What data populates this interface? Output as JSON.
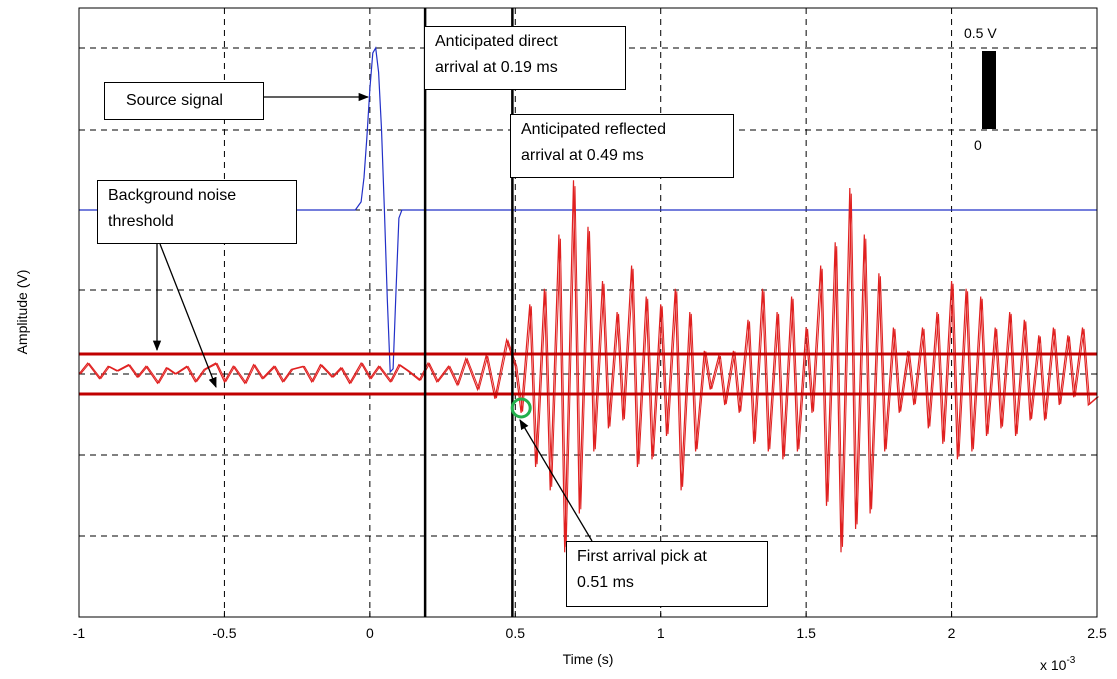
{
  "chart_data": {
    "type": "line",
    "xlabel": "Time (s)",
    "ylabel": "Amplitude (V)",
    "x_multiplier": "x 10",
    "x_multiplier_exp": "-3",
    "xlim": [
      -1,
      2.5
    ],
    "xticks": [
      "-1",
      "-0.5",
      "0",
      "0.5",
      "1",
      "1.5",
      "2",
      "2.5"
    ],
    "grid": true,
    "scale_bar": {
      "top_label": "0.5 V",
      "bottom_label": "0",
      "value_V": 0.5
    },
    "series": [
      {
        "color": "#2230c8",
        "role": "source",
        "x": [
          -1.0,
          -0.05,
          -0.03,
          -0.02,
          -0.01,
          0.0,
          0.01,
          0.02,
          0.03,
          0.04,
          0.05,
          0.06,
          0.07,
          0.08,
          0.09,
          0.1,
          0.11,
          2.5
        ],
        "y": [
          0,
          0,
          0.05,
          0.2,
          0.45,
          0.75,
          0.97,
          1.0,
          0.85,
          0.5,
          0.0,
          -0.55,
          -1.0,
          -0.98,
          -0.5,
          -0.05,
          0,
          0
        ]
      },
      {
        "color": "#e02020",
        "role": "received",
        "x": [
          -1.0,
          -0.97,
          -0.93,
          -0.9,
          -0.87,
          -0.83,
          -0.8,
          -0.77,
          -0.73,
          -0.7,
          -0.67,
          -0.63,
          -0.6,
          -0.57,
          -0.53,
          -0.5,
          -0.47,
          -0.43,
          -0.4,
          -0.37,
          -0.33,
          -0.3,
          -0.27,
          -0.23,
          -0.2,
          -0.17,
          -0.13,
          -0.1,
          -0.07,
          -0.03,
          0.0,
          0.03,
          0.07,
          0.1,
          0.13,
          0.17,
          0.2,
          0.23,
          0.27,
          0.3,
          0.33,
          0.37,
          0.4,
          0.43,
          0.47,
          0.5,
          0.52,
          0.55,
          0.57,
          0.6,
          0.62,
          0.65,
          0.67,
          0.7,
          0.72,
          0.75,
          0.77,
          0.8,
          0.82,
          0.85,
          0.87,
          0.9,
          0.92,
          0.95,
          0.97,
          1.0,
          1.02,
          1.05,
          1.07,
          1.1,
          1.12,
          1.15,
          1.17,
          1.2,
          1.22,
          1.25,
          1.27,
          1.3,
          1.32,
          1.35,
          1.37,
          1.4,
          1.42,
          1.45,
          1.47,
          1.5,
          1.52,
          1.55,
          1.57,
          1.6,
          1.62,
          1.65,
          1.67,
          1.7,
          1.72,
          1.75,
          1.77,
          1.8,
          1.82,
          1.85,
          1.87,
          1.9,
          1.92,
          1.95,
          1.97,
          2.0,
          2.02,
          2.05,
          2.07,
          2.1,
          2.12,
          2.15,
          2.17,
          2.2,
          2.22,
          2.25,
          2.27,
          2.3,
          2.32,
          2.35,
          2.37,
          2.4,
          2.42,
          2.45,
          2.47,
          2.5
        ],
        "y": [
          0.0,
          0.07,
          -0.03,
          0.05,
          0.02,
          0.06,
          -0.02,
          0.05,
          -0.06,
          0.04,
          0.0,
          0.05,
          -0.05,
          0.03,
          0.07,
          -0.05,
          0.05,
          -0.06,
          0.06,
          -0.03,
          0.05,
          -0.05,
          0.03,
          0.05,
          -0.05,
          0.06,
          -0.02,
          0.04,
          -0.06,
          0.07,
          -0.03,
          0.05,
          -0.05,
          0.06,
          0.02,
          -0.04,
          0.07,
          -0.05,
          0.05,
          -0.07,
          0.1,
          -0.1,
          0.12,
          -0.16,
          0.22,
          0.05,
          -0.25,
          0.45,
          -0.6,
          0.55,
          -0.75,
          0.9,
          -1.15,
          1.25,
          -0.9,
          0.95,
          -0.5,
          0.6,
          -0.35,
          0.4,
          -0.3,
          0.7,
          -0.6,
          0.5,
          -0.55,
          0.45,
          -0.4,
          0.55,
          -0.75,
          0.4,
          -0.5,
          0.15,
          -0.1,
          0.12,
          -0.2,
          0.15,
          -0.25,
          0.35,
          -0.45,
          0.55,
          -0.5,
          0.4,
          -0.55,
          0.5,
          -0.5,
          0.3,
          -0.25,
          0.7,
          -0.85,
          0.85,
          -1.15,
          1.2,
          -1.0,
          0.9,
          -0.9,
          0.65,
          -0.5,
          0.3,
          -0.25,
          0.15,
          -0.2,
          0.3,
          -0.35,
          0.4,
          -0.45,
          0.6,
          -0.55,
          0.55,
          -0.5,
          0.5,
          -0.4,
          0.3,
          -0.35,
          0.4,
          -0.4,
          0.35,
          -0.3,
          0.25,
          -0.3,
          0.3,
          -0.2,
          0.25,
          -0.15,
          0.3,
          -0.2,
          -0.15
        ]
      }
    ],
    "threshold": {
      "upper": 0.1,
      "lower": -0.1
    },
    "vertical_lines": [
      {
        "x": 0.19,
        "label": "Anticipated direct arrival at 0.19 ms"
      },
      {
        "x": 0.49,
        "label": "Anticipated reflected arrival at 0.49 ms"
      }
    ],
    "pick": {
      "x": 0.51,
      "y": -0.18
    }
  },
  "annotations": {
    "source_line1": "Source signal",
    "direct_line1": "Anticipated direct",
    "direct_line2": "arrival at 0.19 ms",
    "reflected_line1": "Anticipated reflected",
    "reflected_line2": "arrival at 0.49 ms",
    "noise_line1": "Background noise",
    "noise_line2": "threshold",
    "pick_line1": "First arrival pick at",
    "pick_line2": "0.51 ms"
  }
}
